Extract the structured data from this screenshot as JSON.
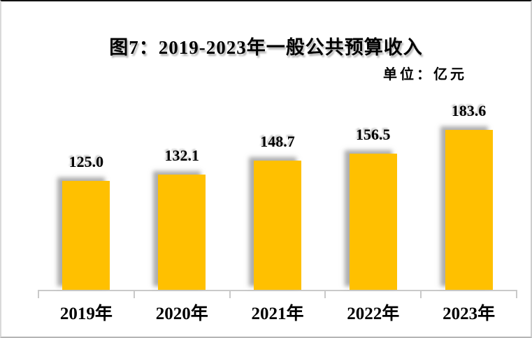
{
  "chart_data": {
    "type": "bar",
    "title": "图7：2019-2023年一般公共预算收入",
    "unit_label": "单位：亿元",
    "categories": [
      "2019年",
      "2020年",
      "2021年",
      "2022年",
      "2023年"
    ],
    "values": [
      125.0,
      132.1,
      148.7,
      156.5,
      183.6
    ],
    "series_name": "一般公共预算收入",
    "xlabel": "",
    "ylabel": "",
    "ylim": [
      0,
      200
    ],
    "grid": false,
    "legend_position": "none",
    "value_label_decimals": 1,
    "colors": {
      "bar_fill": "#FFC000",
      "axis_line": "#C9C9C9",
      "text": "#000000",
      "background": "#FFFFFF"
    }
  }
}
